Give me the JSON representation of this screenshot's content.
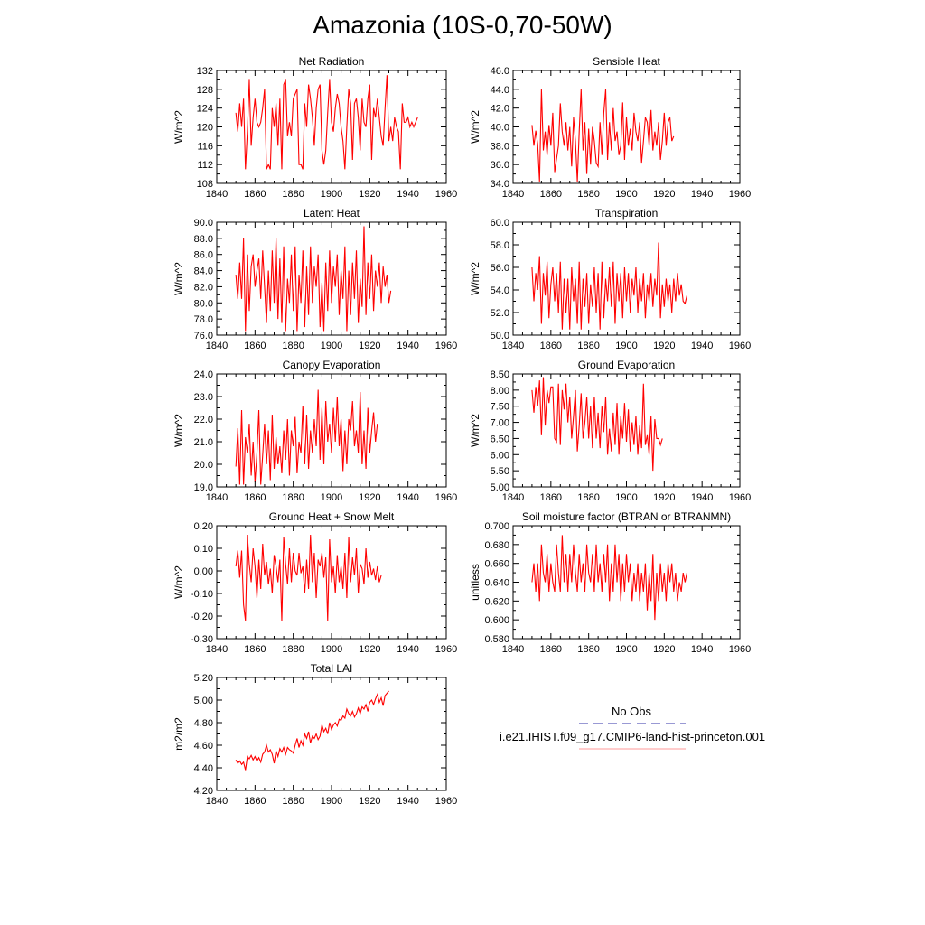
{
  "page": {
    "title": "Amazonia (10S-0,70-50W)"
  },
  "legend": {
    "entries": [
      {
        "name": "No Obs",
        "color": "#3333aa",
        "style": "dashed"
      },
      {
        "name": "i.e21.IHIST.f09_g17.CMIP6-land-hist-princeton.001",
        "color": "#ff0000",
        "style": "solid"
      }
    ]
  },
  "chart_data": [
    {
      "type": "line",
      "title": "Net Radiation",
      "ylabel": "W/m^2",
      "xlim": [
        1840,
        1960
      ],
      "ylim": [
        108,
        132
      ],
      "xticks": [
        1840,
        1860,
        1880,
        1900,
        1920,
        1940,
        1960
      ],
      "yticks": [
        "108",
        "112",
        "116",
        "120",
        "124",
        "128",
        "132"
      ],
      "series": [
        {
          "color": "#ff0000",
          "x_start": 1850,
          "y": [
            123,
            119,
            125,
            120,
            126,
            111,
            119,
            130,
            116,
            122,
            126,
            121,
            120,
            121,
            124,
            128,
            111,
            112,
            111,
            124,
            120,
            125,
            116,
            126,
            111,
            129,
            130,
            118,
            121,
            118,
            126,
            127,
            128,
            112,
            112,
            111,
            125,
            120,
            129,
            126,
            122,
            116,
            124,
            128,
            129,
            115,
            112,
            115,
            123,
            130,
            121,
            119,
            124,
            127,
            125,
            120,
            117,
            111,
            120,
            128,
            125,
            113,
            125,
            126,
            122,
            115,
            126,
            121,
            120,
            126,
            129,
            113,
            124,
            122,
            126,
            122,
            118,
            116,
            124,
            131,
            117,
            120,
            117,
            122,
            120,
            119,
            111,
            125,
            121,
            121,
            122,
            120,
            121,
            120,
            121,
            122
          ]
        }
      ]
    },
    {
      "type": "line",
      "title": "Sensible Heat",
      "ylabel": "W/m^2",
      "xlim": [
        1840,
        1960
      ],
      "ylim": [
        34,
        46
      ],
      "xticks": [
        1840,
        1860,
        1880,
        1900,
        1920,
        1940,
        1960
      ],
      "yticks": [
        "34.0",
        "36.0",
        "38.0",
        "40.0",
        "42.0",
        "44.0",
        "46.0"
      ],
      "series": [
        {
          "color": "#ff0000",
          "x_start": 1850,
          "y": [
            40.2,
            38.0,
            39.6,
            38.2,
            34.2,
            44.0,
            37.5,
            39.5,
            37.0,
            40.2,
            38.0,
            41.5,
            35.2,
            36.6,
            38.0,
            42.5,
            39.5,
            38.0,
            40.5,
            37.5,
            40.0,
            35.8,
            41.0,
            38.5,
            34.2,
            39.5,
            44.0,
            37.5,
            40.5,
            35.0,
            39.8,
            36.0,
            40.0,
            38.5,
            36.2,
            35.8,
            40.5,
            37.0,
            41.5,
            44.0,
            36.5,
            40.5,
            37.5,
            42.0,
            38.5,
            39.5,
            37.0,
            38.0,
            42.6,
            36.5,
            41.0,
            38.0,
            39.8,
            37.5,
            41.5,
            39.5,
            38.5,
            40.5,
            36.2,
            38.5,
            41.0,
            40.5,
            38.0,
            41.8,
            37.5,
            39.5,
            38.0,
            40.5,
            36.5,
            38.5,
            41.5,
            38.0,
            40.5,
            41.0,
            38.5,
            39.0
          ]
        }
      ]
    },
    {
      "type": "line",
      "title": "Latent Heat",
      "ylabel": "W/m^2",
      "xlim": [
        1840,
        1960
      ],
      "ylim": [
        76,
        90
      ],
      "xticks": [
        1840,
        1860,
        1880,
        1900,
        1920,
        1940,
        1960
      ],
      "yticks": [
        "76.0",
        "78.0",
        "80.0",
        "82.0",
        "84.0",
        "86.0",
        "88.0",
        "90.0"
      ],
      "series": [
        {
          "color": "#ff0000",
          "x_start": 1850,
          "y": [
            83.5,
            80.5,
            85.0,
            80.5,
            88.0,
            76.5,
            86.0,
            79.0,
            84.5,
            86.0,
            82.0,
            84.0,
            85.5,
            80.5,
            86.5,
            82.0,
            77.5,
            84.0,
            79.0,
            86.5,
            80.0,
            88.0,
            78.0,
            85.5,
            77.5,
            87.0,
            76.5,
            83.0,
            80.0,
            86.0,
            79.0,
            87.0,
            76.5,
            83.5,
            80.0,
            86.5,
            77.0,
            84.5,
            78.5,
            87.0,
            80.0,
            84.5,
            82.0,
            86.0,
            77.0,
            82.5,
            76.5,
            85.0,
            79.0,
            86.5,
            80.0,
            84.5,
            82.0,
            86.0,
            78.5,
            84.0,
            80.5,
            87.0,
            76.5,
            84.0,
            78.5,
            85.0,
            80.5,
            86.5,
            77.5,
            83.0,
            79.5,
            89.5,
            78.5,
            85.0,
            80.5,
            86.0,
            79.0,
            84.0,
            82.0,
            85.0,
            80.0,
            84.5,
            82.0,
            83.5,
            80.0,
            81.5
          ]
        }
      ]
    },
    {
      "type": "line",
      "title": "Transpiration",
      "ylabel": "W/m^2",
      "xlim": [
        1840,
        1960
      ],
      "ylim": [
        50,
        60
      ],
      "xticks": [
        1840,
        1860,
        1880,
        1900,
        1920,
        1940,
        1960
      ],
      "yticks": [
        "50.0",
        "52.0",
        "54.0",
        "56.0",
        "58.0",
        "60.0"
      ],
      "series": [
        {
          "color": "#ff0000",
          "x_start": 1850,
          "y": [
            56.0,
            53.0,
            55.5,
            54.0,
            57.0,
            51.0,
            55.5,
            53.5,
            56.5,
            51.5,
            54.5,
            56.0,
            53.0,
            55.5,
            52.0,
            56.5,
            50.5,
            55.0,
            52.0,
            55.0,
            50.5,
            56.0,
            53.0,
            55.0,
            51.0,
            56.5,
            50.5,
            55.0,
            52.5,
            55.5,
            51.0,
            54.5,
            52.5,
            56.0,
            52.0,
            55.5,
            50.5,
            56.5,
            51.5,
            55.0,
            53.0,
            56.0,
            52.5,
            56.5,
            51.0,
            55.5,
            53.0,
            55.5,
            51.5,
            56.0,
            53.0,
            55.5,
            52.0,
            55.0,
            53.5,
            56.0,
            52.0,
            55.0,
            53.0,
            55.5,
            51.5,
            54.5,
            53.0,
            55.5,
            52.5,
            55.0,
            53.5,
            58.2,
            51.5,
            54.5,
            52.5,
            55.0,
            53.0,
            54.5,
            52.0,
            55.0,
            53.0,
            55.5,
            53.5,
            54.5,
            53.0,
            52.8,
            53.5
          ]
        }
      ]
    },
    {
      "type": "line",
      "title": "Canopy Evaporation",
      "ylabel": "W/m^2",
      "xlim": [
        1840,
        1960
      ],
      "ylim": [
        19,
        24
      ],
      "xticks": [
        1840,
        1860,
        1880,
        1900,
        1920,
        1940,
        1960
      ],
      "yticks": [
        "19.0",
        "20.0",
        "21.0",
        "22.0",
        "23.0",
        "24.0"
      ],
      "series": [
        {
          "color": "#ff0000",
          "x_start": 1850,
          "y": [
            19.9,
            21.6,
            19.1,
            22.4,
            19.1,
            21.2,
            20.5,
            21.8,
            19.5,
            21.0,
            19.2,
            20.5,
            22.4,
            19.1,
            20.4,
            21.8,
            20.0,
            21.5,
            19.3,
            22.2,
            19.8,
            21.2,
            20.0,
            20.8,
            19.6,
            21.5,
            20.2,
            22.0,
            19.5,
            21.5,
            20.8,
            22.1,
            19.6,
            21.0,
            20.5,
            22.6,
            20.0,
            22.2,
            19.8,
            21.5,
            20.5,
            22.0,
            20.8,
            23.3,
            20.2,
            22.5,
            20.0,
            22.8,
            21.0,
            21.8,
            20.5,
            22.5,
            21.0,
            23.0,
            20.8,
            22.0,
            19.7,
            21.5,
            20.0,
            22.0,
            21.5,
            22.8,
            20.8,
            21.5,
            20.5,
            23.2,
            20.0,
            21.5,
            19.8,
            22.5,
            20.5,
            21.5,
            22.3,
            21.0,
            21.8
          ]
        }
      ]
    },
    {
      "type": "line",
      "title": "Ground Evaporation",
      "ylabel": "W/m^2",
      "xlim": [
        1840,
        1960
      ],
      "ylim": [
        5,
        8.5
      ],
      "xticks": [
        1840,
        1860,
        1880,
        1900,
        1920,
        1940,
        1960
      ],
      "yticks": [
        "5.00",
        "5.50",
        "6.00",
        "6.50",
        "7.00",
        "7.50",
        "8.00",
        "8.50"
      ],
      "series": [
        {
          "color": "#ff0000",
          "x_start": 1850,
          "y": [
            8.0,
            7.3,
            8.1,
            7.5,
            8.3,
            6.6,
            8.4,
            6.9,
            8.0,
            7.6,
            8.1,
            8.1,
            6.5,
            6.4,
            8.2,
            6.3,
            8.0,
            7.4,
            8.2,
            7.0,
            7.8,
            6.5,
            7.2,
            8.0,
            6.1,
            6.9,
            7.9,
            6.5,
            7.0,
            7.8,
            6.5,
            7.5,
            6.2,
            7.8,
            6.5,
            7.3,
            6.2,
            7.5,
            6.7,
            7.8,
            6.0,
            6.8,
            6.1,
            7.3,
            6.3,
            7.6,
            6.0,
            7.2,
            6.5,
            7.6,
            6.4,
            7.4,
            6.1,
            7.0,
            6.3,
            7.2,
            6.0,
            6.9,
            6.2,
            8.2,
            6.3,
            6.6,
            6.0,
            7.2,
            5.5,
            7.1,
            6.5,
            6.5,
            6.3,
            6.5
          ]
        }
      ]
    },
    {
      "type": "line",
      "title": "Ground Heat + Snow Melt",
      "ylabel": "W/m^2",
      "xlim": [
        1840,
        1960
      ],
      "ylim": [
        -0.3,
        0.2
      ],
      "xticks": [
        1840,
        1860,
        1880,
        1900,
        1920,
        1940,
        1960
      ],
      "yticks": [
        "-0.30",
        "-0.20",
        "-0.10",
        "0.00",
        "0.10",
        "0.20"
      ],
      "series": [
        {
          "color": "#ff0000",
          "x_start": 1850,
          "y": [
            0.02,
            0.09,
            -0.03,
            0.09,
            -0.15,
            -0.22,
            0.16,
            0.03,
            -0.05,
            0.1,
            0.02,
            -0.12,
            0.05,
            -0.08,
            0.12,
            -0.02,
            0.04,
            -0.06,
            0.01,
            -0.1,
            0.07,
            0.02,
            -0.05,
            0.05,
            -0.22,
            0.15,
            0.03,
            -0.06,
            0.1,
            -0.05,
            0.08,
            0.0,
            -0.02,
            0.08,
            -0.01,
            0.02,
            -0.1,
            0.05,
            -0.08,
            0.16,
            -0.05,
            0.08,
            -0.12,
            0.05,
            0.02,
            0.08,
            -0.03,
            0.06,
            -0.22,
            0.14,
            -0.05,
            0.02,
            -0.1,
            0.07,
            -0.05,
            0.02,
            -0.08,
            0.08,
            -0.12,
            0.15,
            -0.05,
            0.06,
            -0.02,
            0.1,
            -0.1,
            0.03,
            0.01,
            -0.06,
            0.1,
            -0.03,
            0.04,
            -0.02,
            0.01,
            -0.04,
            0.02,
            -0.05,
            -0.02
          ]
        }
      ]
    },
    {
      "type": "line",
      "title": "Soil moisture factor (BTRAN or BTRANMN)",
      "ylabel": "unitless",
      "xlim": [
        1840,
        1960
      ],
      "ylim": [
        0.58,
        0.7
      ],
      "xticks": [
        1840,
        1860,
        1880,
        1900,
        1920,
        1940,
        1960
      ],
      "yticks": [
        "0.580",
        "0.600",
        "0.620",
        "0.640",
        "0.660",
        "0.680",
        "0.700"
      ],
      "series": [
        {
          "color": "#ff0000",
          "x_start": 1850,
          "y": [
            0.64,
            0.66,
            0.63,
            0.66,
            0.62,
            0.68,
            0.65,
            0.64,
            0.67,
            0.63,
            0.66,
            0.64,
            0.63,
            0.68,
            0.65,
            0.63,
            0.69,
            0.64,
            0.67,
            0.63,
            0.67,
            0.64,
            0.68,
            0.65,
            0.63,
            0.67,
            0.64,
            0.66,
            0.63,
            0.68,
            0.65,
            0.64,
            0.67,
            0.63,
            0.68,
            0.64,
            0.66,
            0.63,
            0.67,
            0.64,
            0.68,
            0.62,
            0.66,
            0.63,
            0.68,
            0.64,
            0.67,
            0.62,
            0.66,
            0.63,
            0.67,
            0.64,
            0.66,
            0.62,
            0.65,
            0.63,
            0.66,
            0.62,
            0.65,
            0.63,
            0.66,
            0.61,
            0.65,
            0.62,
            0.67,
            0.6,
            0.65,
            0.62,
            0.66,
            0.63,
            0.65,
            0.62,
            0.66,
            0.64,
            0.66,
            0.63,
            0.65,
            0.62,
            0.64,
            0.63,
            0.65,
            0.64,
            0.65
          ]
        }
      ]
    },
    {
      "type": "line",
      "title": "Total LAI",
      "ylabel": "m2/m2",
      "xlim": [
        1840,
        1960
      ],
      "ylim": [
        4.2,
        5.2
      ],
      "xticks": [
        1840,
        1860,
        1880,
        1900,
        1920,
        1940,
        1960
      ],
      "yticks": [
        "4.20",
        "4.40",
        "4.60",
        "4.80",
        "5.00",
        "5.20"
      ],
      "series": [
        {
          "color": "#ff0000",
          "x_start": 1850,
          "y": [
            4.47,
            4.44,
            4.46,
            4.43,
            4.45,
            4.38,
            4.5,
            4.48,
            4.51,
            4.47,
            4.5,
            4.46,
            4.49,
            4.45,
            4.52,
            4.54,
            4.6,
            4.54,
            4.56,
            4.52,
            4.44,
            4.55,
            4.5,
            4.57,
            4.54,
            4.58,
            4.52,
            4.58,
            4.56,
            4.55,
            4.53,
            4.6,
            4.66,
            4.58,
            4.64,
            4.6,
            4.7,
            4.66,
            4.72,
            4.62,
            4.68,
            4.66,
            4.7,
            4.65,
            4.68,
            4.78,
            4.72,
            4.75,
            4.7,
            4.8,
            4.74,
            4.78,
            4.8,
            4.77,
            4.83,
            4.82,
            4.86,
            4.84,
            4.92,
            4.88,
            4.86,
            4.9,
            4.85,
            4.88,
            4.93,
            4.88,
            4.94,
            4.92,
            4.96,
            4.9,
            4.98,
            5.0,
            4.96,
            5.01,
            5.05,
            4.98,
            5.02,
            4.95,
            5.04,
            5.06,
            5.08
          ]
        }
      ]
    }
  ]
}
